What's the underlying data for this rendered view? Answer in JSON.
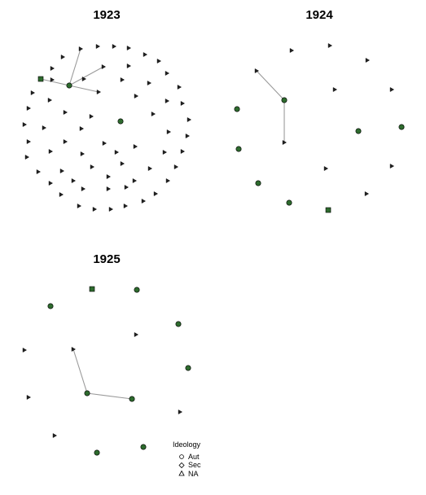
{
  "colors": {
    "node_fill": "#2e6b2e",
    "triangle_fill": "#222222",
    "edge": "#9a9a9a"
  },
  "panels": [
    {
      "title": "1923"
    },
    {
      "title": "1924"
    },
    {
      "title": "1925"
    }
  ],
  "legend": {
    "title": "Ideology",
    "items": [
      {
        "label": "Aut",
        "symbol": "circle"
      },
      {
        "label": "Sec",
        "symbol": "diamond"
      },
      {
        "label": "NA",
        "symbol": "triangle"
      }
    ]
  }
}
